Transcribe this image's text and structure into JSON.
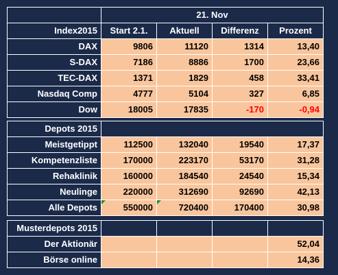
{
  "date_header": "21. Nov",
  "index_table": {
    "headers": [
      "Index2015",
      "Start 2.1.",
      "Aktuell",
      "Differenz",
      "Prozent"
    ],
    "rows": [
      {
        "name": "DAX",
        "start": "9806",
        "aktuell": "11120",
        "differenz": "1314",
        "prozent": "13,40"
      },
      {
        "name": "S-DAX",
        "start": "7186",
        "aktuell": "8886",
        "differenz": "1700",
        "prozent": "23,66"
      },
      {
        "name": "TEC-DAX",
        "start": "1371",
        "aktuell": "1829",
        "differenz": "458",
        "prozent": "33,41"
      },
      {
        "name": "Nasdaq Comp",
        "start": "4777",
        "aktuell": "5104",
        "differenz": "327",
        "prozent": "6,85"
      },
      {
        "name": "Dow",
        "start": "18005",
        "aktuell": "17835",
        "differenz": "-170",
        "prozent": "-0,94"
      }
    ]
  },
  "depots_table": {
    "title": "Depots 2015",
    "rows": [
      {
        "name": "Meistgetippt",
        "start": "112500",
        "aktuell": "132040",
        "differenz": "19540",
        "prozent": "17,37"
      },
      {
        "name": "Kompetenzliste",
        "start": "170000",
        "aktuell": "223170",
        "differenz": "53170",
        "prozent": "31,28"
      },
      {
        "name": "Rehaklinik",
        "start": "160000",
        "aktuell": "184540",
        "differenz": "24540",
        "prozent": "15,34"
      },
      {
        "name": "Neulinge",
        "start": "220000",
        "aktuell": "312690",
        "differenz": "92690",
        "prozent": "42,13"
      },
      {
        "name": "Alle Depots",
        "start": "550000",
        "aktuell": "720400",
        "differenz": "170400",
        "prozent": "30,98"
      }
    ]
  },
  "musterdepots_table": {
    "title": "Musterdepots 2015",
    "rows": [
      {
        "name": "Der Aktionär",
        "prozent": "52,04"
      },
      {
        "name": "Börse online",
        "prozent": "14,36"
      }
    ]
  },
  "colors": {
    "background": "#1b2a49",
    "value_fill": "#f9c59c",
    "negative": "#ff0000",
    "grid": "#ffffff"
  }
}
